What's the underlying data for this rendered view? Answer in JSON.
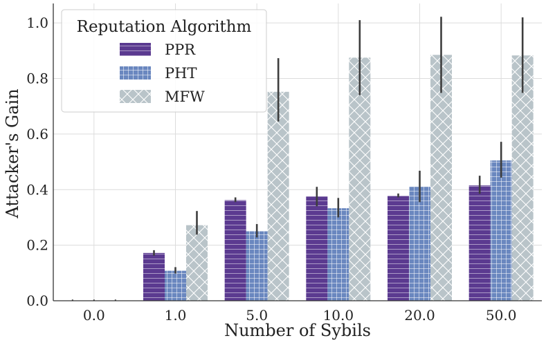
{
  "chart_data": {
    "type": "bar",
    "title": "",
    "xlabel": "Number of Sybils",
    "ylabel": "Attacker's Gain",
    "ylim": [
      0,
      1.07
    ],
    "yticks": [
      0.0,
      0.2,
      0.4,
      0.6,
      0.8,
      1.0
    ],
    "ytick_labels": [
      "0.0",
      "0.2",
      "0.4",
      "0.6",
      "0.8",
      "1.0"
    ],
    "categories": [
      "0.0",
      "1.0",
      "5.0",
      "10.0",
      "20.0",
      "50.0"
    ],
    "grid": true,
    "legend": {
      "title": "Reputation Algorithm",
      "position": "top-left"
    },
    "series": [
      {
        "name": "PPR",
        "color": "#5b3a90",
        "hatch": "horizontal-lines",
        "values": [
          0.0,
          0.172,
          0.362,
          0.375,
          0.378,
          0.415
        ],
        "err_low": [
          0.0,
          0.162,
          0.355,
          0.34,
          0.372,
          0.385
        ],
        "err_high": [
          0.0,
          0.182,
          0.372,
          0.41,
          0.386,
          0.45
        ]
      },
      {
        "name": "PHT",
        "color": "#6a87bf",
        "hatch": "grid",
        "values": [
          0.0,
          0.108,
          0.25,
          0.333,
          0.41,
          0.505
        ],
        "err_low": [
          0.0,
          0.098,
          0.228,
          0.3,
          0.355,
          0.443
        ],
        "err_high": [
          0.0,
          0.121,
          0.276,
          0.37,
          0.468,
          0.572
        ]
      },
      {
        "name": "MFW",
        "color": "#b9c4c9",
        "hatch": "crosshatch",
        "values": [
          0.0,
          0.272,
          0.752,
          0.875,
          0.885,
          0.883
        ],
        "err_low": [
          0.0,
          0.238,
          0.645,
          0.74,
          0.748,
          0.748
        ],
        "err_high": [
          0.0,
          0.323,
          0.873,
          1.01,
          1.022,
          1.02
        ]
      }
    ]
  }
}
